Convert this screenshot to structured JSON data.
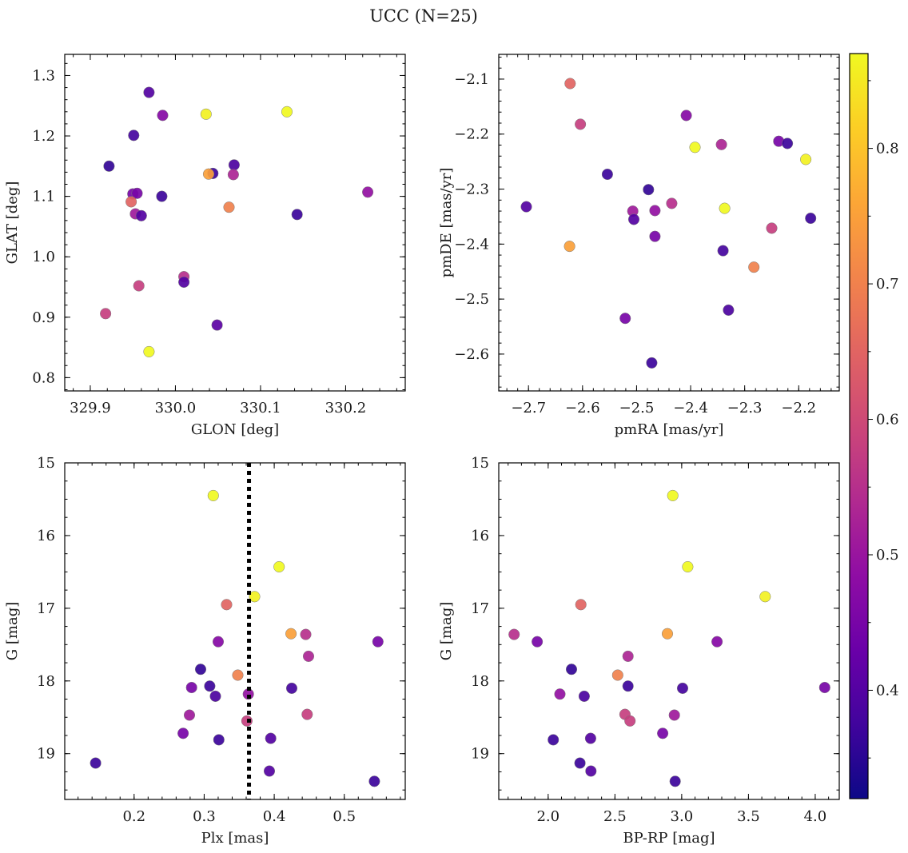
{
  "figure": {
    "title": "UCC (N=25)"
  },
  "colorbar": {
    "ticks": [
      "0.4",
      "0.5",
      "0.6",
      "0.7",
      "0.8"
    ],
    "tick_values": [
      0.4,
      0.5,
      0.6,
      0.7,
      0.8
    ],
    "range": [
      0.32,
      0.87
    ],
    "colormap": "plasma"
  },
  "chart_data": [
    {
      "type": "scatter",
      "xlabel": "GLON [deg]",
      "ylabel": "GLAT [deg]",
      "xlim": [
        329.87,
        330.27
      ],
      "ylim": [
        0.778,
        1.335
      ],
      "invert_y": false,
      "xticks": [
        {
          "v": 329.9,
          "t": "329.9"
        },
        {
          "v": 330.0,
          "t": "330.0"
        },
        {
          "v": 330.1,
          "t": "330.1"
        },
        {
          "v": 330.2,
          "t": "330.2"
        }
      ],
      "yticks": [
        {
          "v": 0.8,
          "t": "0.8"
        },
        {
          "v": 0.9,
          "t": "0.9"
        },
        {
          "v": 1.0,
          "t": "1.0"
        },
        {
          "v": 1.1,
          "t": "1.1"
        },
        {
          "v": 1.2,
          "t": "1.2"
        },
        {
          "v": 1.3,
          "t": "1.3"
        }
      ],
      "points": [
        {
          "x": 329.969,
          "y": 1.272,
          "c": 0.4
        },
        {
          "x": 329.985,
          "y": 1.234,
          "c": 0.47
        },
        {
          "x": 330.036,
          "y": 1.236,
          "c": 0.86
        },
        {
          "x": 330.131,
          "y": 1.24,
          "c": 0.87
        },
        {
          "x": 329.951,
          "y": 1.201,
          "c": 0.38
        },
        {
          "x": 329.922,
          "y": 1.15,
          "c": 0.36
        },
        {
          "x": 330.044,
          "y": 1.138,
          "c": 0.37
        },
        {
          "x": 330.039,
          "y": 1.137,
          "c": 0.75
        },
        {
          "x": 330.069,
          "y": 1.152,
          "c": 0.39
        },
        {
          "x": 330.068,
          "y": 1.136,
          "c": 0.53
        },
        {
          "x": 329.95,
          "y": 1.104,
          "c": 0.45
        },
        {
          "x": 329.955,
          "y": 1.105,
          "c": 0.45
        },
        {
          "x": 329.984,
          "y": 1.1,
          "c": 0.37
        },
        {
          "x": 329.948,
          "y": 1.091,
          "c": 0.65
        },
        {
          "x": 330.063,
          "y": 1.082,
          "c": 0.7
        },
        {
          "x": 330.226,
          "y": 1.107,
          "c": 0.49
        },
        {
          "x": 329.953,
          "y": 1.071,
          "c": 0.51
        },
        {
          "x": 329.96,
          "y": 1.068,
          "c": 0.4
        },
        {
          "x": 330.143,
          "y": 1.07,
          "c": 0.37
        },
        {
          "x": 330.01,
          "y": 0.967,
          "c": 0.55
        },
        {
          "x": 330.01,
          "y": 0.958,
          "c": 0.4
        },
        {
          "x": 329.957,
          "y": 0.952,
          "c": 0.58
        },
        {
          "x": 329.918,
          "y": 0.906,
          "c": 0.58
        },
        {
          "x": 330.049,
          "y": 0.887,
          "c": 0.41
        },
        {
          "x": 329.969,
          "y": 0.843,
          "c": 0.87
        }
      ]
    },
    {
      "type": "scatter",
      "xlabel": "pmRA [mas/yr]",
      "ylabel": "pmDE [mas/yr]",
      "xlim": [
        -2.755,
        -2.125
      ],
      "ylim": [
        -2.667,
        -2.055
      ],
      "invert_y": false,
      "xticks": [
        {
          "v": -2.7,
          "t": "−2.7"
        },
        {
          "v": -2.6,
          "t": "−2.6"
        },
        {
          "v": -2.5,
          "t": "−2.5"
        },
        {
          "v": -2.4,
          "t": "−2.4"
        },
        {
          "v": -2.3,
          "t": "−2.3"
        },
        {
          "v": -2.2,
          "t": "−2.2"
        }
      ],
      "yticks": [
        {
          "v": -2.6,
          "t": "−2.6"
        },
        {
          "v": -2.5,
          "t": "−2.5"
        },
        {
          "v": -2.4,
          "t": "−2.4"
        },
        {
          "v": -2.3,
          "t": "−2.3"
        },
        {
          "v": -2.2,
          "t": "−2.2"
        },
        {
          "v": -2.1,
          "t": "−2.1"
        }
      ],
      "points": [
        {
          "x": -2.623,
          "y": -2.108,
          "c": 0.65
        },
        {
          "x": -2.604,
          "y": -2.182,
          "c": 0.58
        },
        {
          "x": -2.408,
          "y": -2.166,
          "c": 0.47
        },
        {
          "x": -2.392,
          "y": -2.224,
          "c": 0.87
        },
        {
          "x": -2.343,
          "y": -2.219,
          "c": 0.53
        },
        {
          "x": -2.237,
          "y": -2.213,
          "c": 0.45
        },
        {
          "x": -2.221,
          "y": -2.217,
          "c": 0.37
        },
        {
          "x": -2.187,
          "y": -2.246,
          "c": 0.86
        },
        {
          "x": -2.554,
          "y": -2.273,
          "c": 0.37
        },
        {
          "x": -2.478,
          "y": -2.301,
          "c": 0.36
        },
        {
          "x": -2.435,
          "y": -2.326,
          "c": 0.55
        },
        {
          "x": -2.704,
          "y": -2.332,
          "c": 0.4
        },
        {
          "x": -2.507,
          "y": -2.34,
          "c": 0.51
        },
        {
          "x": -2.466,
          "y": -2.339,
          "c": 0.49
        },
        {
          "x": -2.337,
          "y": -2.335,
          "c": 0.87
        },
        {
          "x": -2.505,
          "y": -2.355,
          "c": 0.4
        },
        {
          "x": -2.178,
          "y": -2.353,
          "c": 0.37
        },
        {
          "x": -2.25,
          "y": -2.371,
          "c": 0.58
        },
        {
          "x": -2.466,
          "y": -2.386,
          "c": 0.45
        },
        {
          "x": -2.624,
          "y": -2.404,
          "c": 0.75
        },
        {
          "x": -2.34,
          "y": -2.412,
          "c": 0.38
        },
        {
          "x": -2.283,
          "y": -2.442,
          "c": 0.7
        },
        {
          "x": -2.33,
          "y": -2.52,
          "c": 0.39
        },
        {
          "x": -2.521,
          "y": -2.535,
          "c": 0.45
        },
        {
          "x": -2.472,
          "y": -2.616,
          "c": 0.37
        }
      ]
    },
    {
      "type": "scatter",
      "xlabel": "Plx [mas]",
      "ylabel": "G [mag]",
      "xlim": [
        0.101,
        0.587
      ],
      "ylim": [
        15.0,
        19.63
      ],
      "invert_y": true,
      "vline": 0.364,
      "xticks": [
        {
          "v": 0.2,
          "t": "0.2"
        },
        {
          "v": 0.3,
          "t": "0.3"
        },
        {
          "v": 0.4,
          "t": "0.4"
        },
        {
          "v": 0.5,
          "t": "0.5"
        }
      ],
      "yticks": [
        {
          "v": 15,
          "t": "15"
        },
        {
          "v": 16,
          "t": "16"
        },
        {
          "v": 17,
          "t": "17"
        },
        {
          "v": 18,
          "t": "18"
        },
        {
          "v": 19,
          "t": "19"
        }
      ],
      "points": [
        {
          "x": 0.313,
          "y": 15.45,
          "c": 0.87
        },
        {
          "x": 0.407,
          "y": 16.43,
          "c": 0.87
        },
        {
          "x": 0.372,
          "y": 16.84,
          "c": 0.86
        },
        {
          "x": 0.332,
          "y": 16.95,
          "c": 0.65
        },
        {
          "x": 0.424,
          "y": 17.35,
          "c": 0.75
        },
        {
          "x": 0.445,
          "y": 17.36,
          "c": 0.55
        },
        {
          "x": 0.32,
          "y": 17.46,
          "c": 0.47
        },
        {
          "x": 0.548,
          "y": 17.46,
          "c": 0.45
        },
        {
          "x": 0.449,
          "y": 17.66,
          "c": 0.53
        },
        {
          "x": 0.295,
          "y": 17.84,
          "c": 0.36
        },
        {
          "x": 0.348,
          "y": 17.92,
          "c": 0.7
        },
        {
          "x": 0.308,
          "y": 18.07,
          "c": 0.37
        },
        {
          "x": 0.282,
          "y": 18.09,
          "c": 0.45
        },
        {
          "x": 0.425,
          "y": 18.1,
          "c": 0.38
        },
        {
          "x": 0.316,
          "y": 18.21,
          "c": 0.39
        },
        {
          "x": 0.363,
          "y": 18.18,
          "c": 0.49
        },
        {
          "x": 0.279,
          "y": 18.47,
          "c": 0.51
        },
        {
          "x": 0.447,
          "y": 18.46,
          "c": 0.58
        },
        {
          "x": 0.361,
          "y": 18.55,
          "c": 0.58
        },
        {
          "x": 0.27,
          "y": 18.72,
          "c": 0.45
        },
        {
          "x": 0.395,
          "y": 18.79,
          "c": 0.4
        },
        {
          "x": 0.321,
          "y": 18.81,
          "c": 0.37
        },
        {
          "x": 0.145,
          "y": 19.13,
          "c": 0.37
        },
        {
          "x": 0.393,
          "y": 19.24,
          "c": 0.4
        },
        {
          "x": 0.543,
          "y": 19.38,
          "c": 0.37
        }
      ]
    },
    {
      "type": "scatter",
      "xlabel": "BP-RP [mag]",
      "ylabel": "G [mag]",
      "xlim": [
        1.63,
        4.18
      ],
      "ylim": [
        15.0,
        19.63
      ],
      "invert_y": true,
      "xticks": [
        {
          "v": 2.0,
          "t": "2.0"
        },
        {
          "v": 2.5,
          "t": "2.5"
        },
        {
          "v": 3.0,
          "t": "3.0"
        },
        {
          "v": 3.5,
          "t": "3.5"
        },
        {
          "v": 4.0,
          "t": "4.0"
        }
      ],
      "yticks": [
        {
          "v": 15,
          "t": "15"
        },
        {
          "v": 16,
          "t": "16"
        },
        {
          "v": 17,
          "t": "17"
        },
        {
          "v": 18,
          "t": "18"
        },
        {
          "v": 19,
          "t": "19"
        }
      ],
      "points": [
        {
          "x": 2.933,
          "y": 15.45,
          "c": 0.87
        },
        {
          "x": 3.045,
          "y": 16.43,
          "c": 0.87
        },
        {
          "x": 3.625,
          "y": 16.84,
          "c": 0.86
        },
        {
          "x": 2.245,
          "y": 16.95,
          "c": 0.65
        },
        {
          "x": 2.893,
          "y": 17.35,
          "c": 0.75
        },
        {
          "x": 1.745,
          "y": 17.36,
          "c": 0.55
        },
        {
          "x": 1.918,
          "y": 17.46,
          "c": 0.45
        },
        {
          "x": 3.265,
          "y": 17.46,
          "c": 0.47
        },
        {
          "x": 2.598,
          "y": 17.66,
          "c": 0.53
        },
        {
          "x": 2.175,
          "y": 17.84,
          "c": 0.36
        },
        {
          "x": 2.521,
          "y": 17.92,
          "c": 0.7
        },
        {
          "x": 2.598,
          "y": 18.07,
          "c": 0.37
        },
        {
          "x": 3.007,
          "y": 18.1,
          "c": 0.38
        },
        {
          "x": 4.071,
          "y": 18.09,
          "c": 0.45
        },
        {
          "x": 2.088,
          "y": 18.18,
          "c": 0.49
        },
        {
          "x": 2.27,
          "y": 18.21,
          "c": 0.39
        },
        {
          "x": 2.575,
          "y": 18.46,
          "c": 0.58
        },
        {
          "x": 2.945,
          "y": 18.47,
          "c": 0.51
        },
        {
          "x": 2.613,
          "y": 18.55,
          "c": 0.58
        },
        {
          "x": 2.858,
          "y": 18.72,
          "c": 0.45
        },
        {
          "x": 2.318,
          "y": 18.79,
          "c": 0.4
        },
        {
          "x": 2.038,
          "y": 18.81,
          "c": 0.37
        },
        {
          "x": 2.238,
          "y": 19.13,
          "c": 0.37
        },
        {
          "x": 2.32,
          "y": 19.24,
          "c": 0.4
        },
        {
          "x": 2.951,
          "y": 19.38,
          "c": 0.37
        }
      ]
    }
  ]
}
